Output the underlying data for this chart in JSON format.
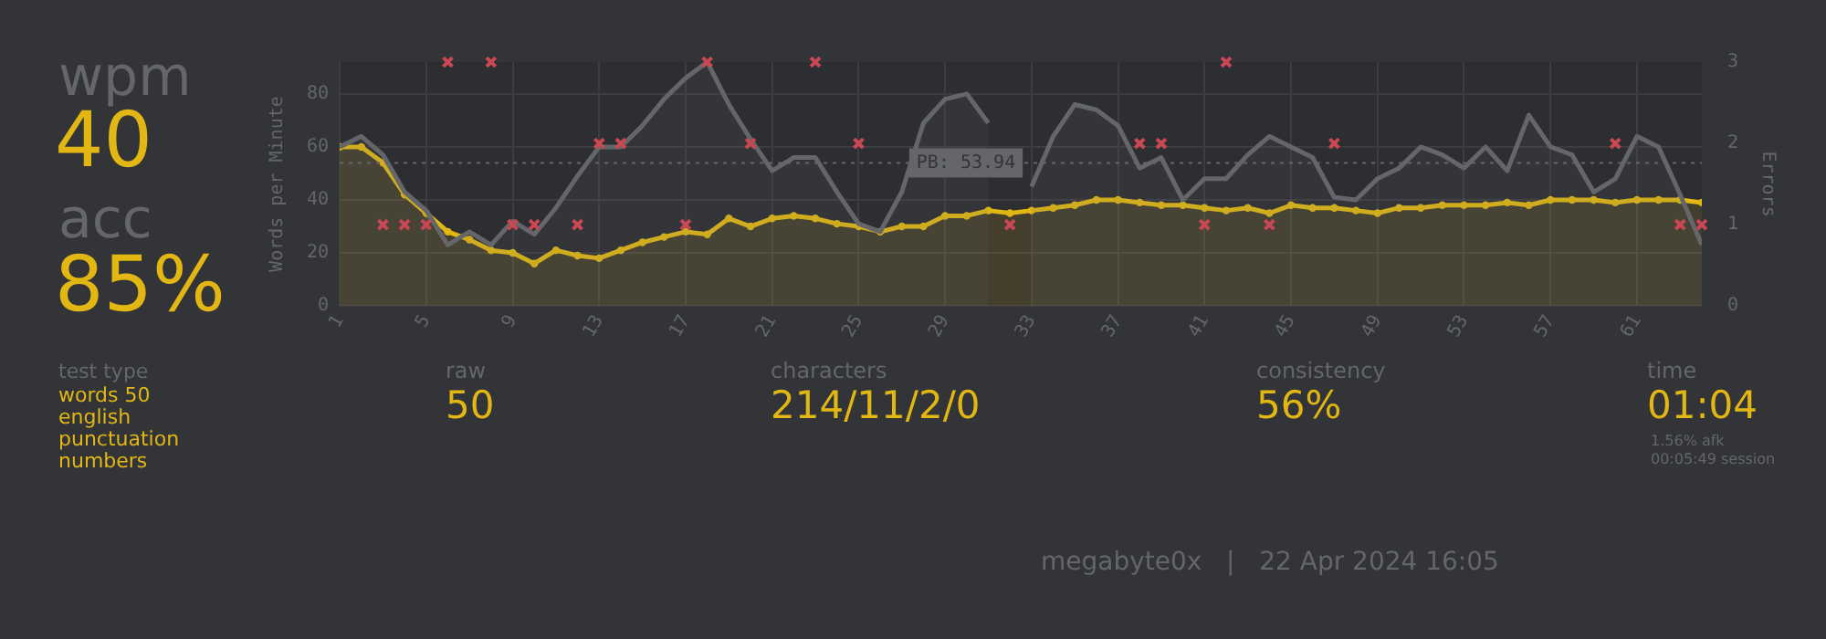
{
  "chart_data": [
    {
      "type": "other",
      "annotations": [
        "wpm",
        "40",
        "acc",
        "85%",
        "test type",
        "words 50",
        "english",
        "punctuation",
        "numbers",
        "raw",
        "50",
        "characters",
        "214/11/2/0",
        "consistency",
        "56%",
        "time",
        "01:04",
        "1.56% afk",
        "00:05:49 session",
        "megabyte0x   |   22 Apr 2024 16:05"
      ]
    },
    {
      "type": "area",
      "ylabel": "Words per Minute",
      "y2label": "Errors",
      "xlim": [
        1,
        64
      ],
      "xticks": [
        1,
        5,
        9,
        13,
        17,
        21,
        25,
        29,
        33,
        37,
        41,
        45,
        49,
        53,
        57,
        61
      ],
      "ylim": [
        0,
        92
      ],
      "yticks": [
        0,
        20,
        40,
        60,
        80
      ],
      "y2lim": [
        0,
        3
      ],
      "y2ticks": [
        0,
        1,
        2,
        3
      ],
      "x": [
        1,
        2,
        3,
        4,
        5,
        6,
        7,
        8,
        9,
        10,
        11,
        12,
        13,
        14,
        15,
        16,
        17,
        18,
        19,
        20,
        21,
        22,
        23,
        24,
        25,
        26,
        27,
        28,
        29,
        30,
        31,
        32,
        33,
        34,
        35,
        36,
        37,
        38,
        39,
        40,
        41,
        42,
        43,
        44,
        45,
        46,
        47,
        48,
        49,
        50,
        51,
        52,
        53,
        54,
        55,
        56,
        57,
        58,
        59,
        60,
        61,
        62,
        63,
        64
      ],
      "grid": true,
      "legend": false,
      "ref_lines": [
        {
          "axis": "y",
          "value": 53.94,
          "label": "PB: 53.94",
          "color": "#646669",
          "line_style": "dotted"
        }
      ],
      "series": [
        {
          "type": "area",
          "color": "#646669",
          "marker": "none",
          "values": [
            60,
            64,
            57,
            43,
            36,
            23,
            28,
            23,
            32,
            27,
            37,
            49,
            60,
            60,
            68,
            78,
            86,
            92,
            76,
            63,
            51,
            56,
            56,
            43,
            31,
            28,
            43,
            69,
            78,
            80,
            69,
            null,
            45,
            64,
            76,
            74,
            68,
            52,
            56,
            40,
            48,
            48,
            57,
            64,
            60,
            56,
            41,
            40,
            48,
            52,
            60,
            57,
            52,
            60,
            51,
            72,
            60,
            57,
            43,
            48,
            64,
            60,
            42,
            23
          ]
        },
        {
          "type": "area",
          "color": "#e2b714",
          "marker": "circle",
          "values": [
            60,
            60,
            54,
            42,
            35,
            28,
            25,
            21,
            20,
            16,
            21,
            19,
            18,
            21,
            24,
            26,
            28,
            27,
            33,
            30,
            33,
            34,
            33,
            31,
            30,
            28,
            30,
            30,
            34,
            34,
            36,
            35,
            36,
            37,
            38,
            40,
            40,
            39,
            38,
            38,
            37,
            36,
            37,
            35,
            38,
            37,
            37,
            36,
            35,
            37,
            37,
            38,
            38,
            38,
            39,
            38,
            40,
            40,
            40,
            39,
            40,
            40,
            40,
            39
          ]
        },
        {
          "type": "scatter",
          "axis": "y2",
          "color": "#ca4754",
          "marker": "cross",
          "values": [
            null,
            null,
            1,
            1,
            1,
            3,
            null,
            3,
            1,
            1,
            null,
            1,
            2,
            2,
            null,
            null,
            1,
            3,
            null,
            2,
            null,
            null,
            3,
            null,
            2,
            null,
            null,
            null,
            null,
            null,
            null,
            1,
            null,
            null,
            null,
            null,
            null,
            2,
            2,
            null,
            1,
            3,
            null,
            1,
            null,
            null,
            2,
            null,
            null,
            null,
            null,
            null,
            null,
            null,
            null,
            null,
            null,
            null,
            null,
            2,
            null,
            null,
            1,
            1
          ]
        }
      ]
    }
  ]
}
